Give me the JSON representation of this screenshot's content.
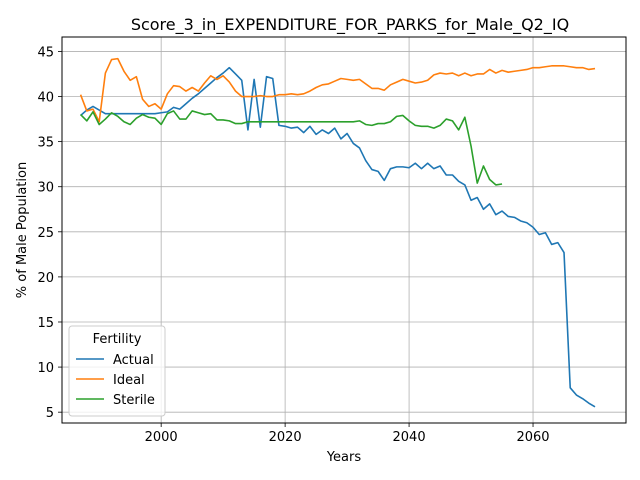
{
  "chart_data": {
    "type": "line",
    "title": "Score_3_in_EXPENDITURE_FOR_PARKS_for_Male_Q2_IQ",
    "xlabel": "Years",
    "ylabel": "% of Male Population",
    "xlim": [
      1984,
      2075
    ],
    "ylim": [
      3.8,
      46.6
    ],
    "xticks": [
      2000,
      2020,
      2040,
      2060
    ],
    "yticks": [
      5,
      10,
      15,
      20,
      25,
      30,
      35,
      40,
      45
    ],
    "grid": true,
    "legend": {
      "title": "Fertility",
      "position": "lower-left"
    },
    "series": [
      {
        "name": "Actual",
        "color": "#1f77b4",
        "x": [
          1987,
          1988,
          1989,
          1990,
          1991,
          1992,
          1993,
          1994,
          1995,
          1996,
          1997,
          1998,
          1999,
          2000,
          2001,
          2002,
          2003,
          2004,
          2005,
          2006,
          2007,
          2008,
          2009,
          2010,
          2011,
          2012,
          2013,
          2014,
          2015,
          2016,
          2017,
          2018,
          2019,
          2020,
          2021,
          2022,
          2023,
          2024,
          2025,
          2026,
          2027,
          2028,
          2029,
          2030,
          2031,
          2032,
          2033,
          2034,
          2035,
          2036,
          2037,
          2038,
          2039,
          2040,
          2041,
          2042,
          2043,
          2044,
          2045,
          2046,
          2047,
          2048,
          2049,
          2050,
          2051,
          2052,
          2053,
          2054,
          2055,
          2056,
          2057,
          2058,
          2059,
          2060,
          2061,
          2062,
          2063,
          2064,
          2065,
          2066,
          2067,
          2068,
          2069,
          2070
        ],
        "values": [
          37.9,
          38.5,
          38.9,
          38.5,
          38.1,
          38.1,
          38.1,
          38.1,
          38.1,
          38.1,
          38.1,
          38.1,
          38.1,
          38.2,
          38.3,
          38.8,
          38.6,
          39.2,
          39.8,
          40.3,
          40.9,
          41.5,
          42.1,
          42.6,
          43.2,
          42.5,
          41.8,
          36.3,
          41.9,
          36.6,
          42.2,
          42.0,
          36.8,
          36.7,
          36.5,
          36.6,
          36.0,
          36.7,
          35.8,
          36.3,
          35.9,
          36.5,
          35.3,
          35.9,
          34.8,
          34.3,
          32.9,
          31.9,
          31.7,
          30.7,
          32.0,
          32.2,
          32.2,
          32.1,
          32.6,
          32.0,
          32.6,
          32.0,
          32.3,
          31.3,
          31.3,
          30.6,
          30.2,
          28.5,
          28.8,
          27.5,
          28.1,
          26.9,
          27.3,
          26.7,
          26.6,
          26.2,
          26.0,
          25.5,
          24.7,
          24.9,
          23.6,
          23.8,
          22.7,
          7.7,
          6.9,
          6.5,
          6.0,
          5.6
        ]
      },
      {
        "name": "Ideal",
        "color": "#ff7f0e",
        "x": [
          1987,
          1988,
          1989,
          1990,
          1991,
          1992,
          1993,
          1994,
          1995,
          1996,
          1997,
          1998,
          1999,
          2000,
          2001,
          2002,
          2003,
          2004,
          2005,
          2006,
          2007,
          2008,
          2009,
          2010,
          2011,
          2012,
          2013,
          2014,
          2015,
          2016,
          2017,
          2018,
          2019,
          2020,
          2021,
          2022,
          2023,
          2024,
          2025,
          2026,
          2027,
          2028,
          2029,
          2030,
          2031,
          2032,
          2033,
          2034,
          2035,
          2036,
          2037,
          2038,
          2039,
          2040,
          2041,
          2042,
          2043,
          2044,
          2045,
          2046,
          2047,
          2048,
          2049,
          2050,
          2051,
          2052,
          2053,
          2054,
          2055,
          2056,
          2057,
          2058,
          2059,
          2060,
          2061,
          2062,
          2063,
          2064,
          2065,
          2066,
          2067,
          2068,
          2069,
          2070
        ],
        "values": [
          40.2,
          38.4,
          38.6,
          37.2,
          42.6,
          44.1,
          44.2,
          42.8,
          41.8,
          42.2,
          39.7,
          38.9,
          39.2,
          38.6,
          40.3,
          41.2,
          41.1,
          40.6,
          41.0,
          40.6,
          41.5,
          42.3,
          41.9,
          42.3,
          41.6,
          40.6,
          40.0,
          40.0,
          40.0,
          40.1,
          40.0,
          40.0,
          40.2,
          40.2,
          40.3,
          40.2,
          40.3,
          40.6,
          41.0,
          41.3,
          41.4,
          41.7,
          42.0,
          41.9,
          41.8,
          41.9,
          41.4,
          40.9,
          40.9,
          40.7,
          41.3,
          41.6,
          41.9,
          41.7,
          41.5,
          41.6,
          41.8,
          42.4,
          42.6,
          42.5,
          42.6,
          42.3,
          42.6,
          42.3,
          42.5,
          42.5,
          43.0,
          42.6,
          42.9,
          42.7,
          42.8,
          42.9,
          43.0,
          43.2,
          43.2,
          43.3,
          43.4,
          43.4,
          43.4,
          43.3,
          43.2,
          43.2,
          43.0,
          43.1
        ]
      },
      {
        "name": "Sterile",
        "color": "#2ca02c",
        "x": [
          1987,
          1988,
          1989,
          1990,
          1991,
          1992,
          1993,
          1994,
          1995,
          1996,
          1997,
          1998,
          1999,
          2000,
          2001,
          2002,
          2003,
          2004,
          2005,
          2006,
          2007,
          2008,
          2009,
          2010,
          2011,
          2012,
          2013,
          2014,
          2015,
          2016,
          2017,
          2018,
          2019,
          2020,
          2021,
          2022,
          2023,
          2024,
          2025,
          2026,
          2027,
          2028,
          2029,
          2030,
          2031,
          2032,
          2033,
          2034,
          2035,
          2036,
          2037,
          2038,
          2039,
          2040,
          2041,
          2042,
          2043,
          2044,
          2045,
          2046,
          2047,
          2048,
          2049,
          2050,
          2051,
          2052,
          2053,
          2054,
          2055
        ],
        "values": [
          38.0,
          37.3,
          38.3,
          36.9,
          37.5,
          38.2,
          37.8,
          37.2,
          36.9,
          37.6,
          38.0,
          37.7,
          37.6,
          36.9,
          38.1,
          38.4,
          37.5,
          37.5,
          38.4,
          38.2,
          38.0,
          38.1,
          37.4,
          37.4,
          37.3,
          37.0,
          37.0,
          37.2,
          37.2,
          37.2,
          37.2,
          37.2,
          37.2,
          37.2,
          37.2,
          37.2,
          37.2,
          37.2,
          37.2,
          37.2,
          37.2,
          37.2,
          37.2,
          37.2,
          37.2,
          37.3,
          36.9,
          36.8,
          37.0,
          37.0,
          37.2,
          37.8,
          37.9,
          37.3,
          36.8,
          36.7,
          36.7,
          36.5,
          36.8,
          37.5,
          37.3,
          36.3,
          37.7,
          34.5,
          30.4,
          32.3,
          30.8,
          30.2,
          30.3
        ]
      }
    ]
  }
}
